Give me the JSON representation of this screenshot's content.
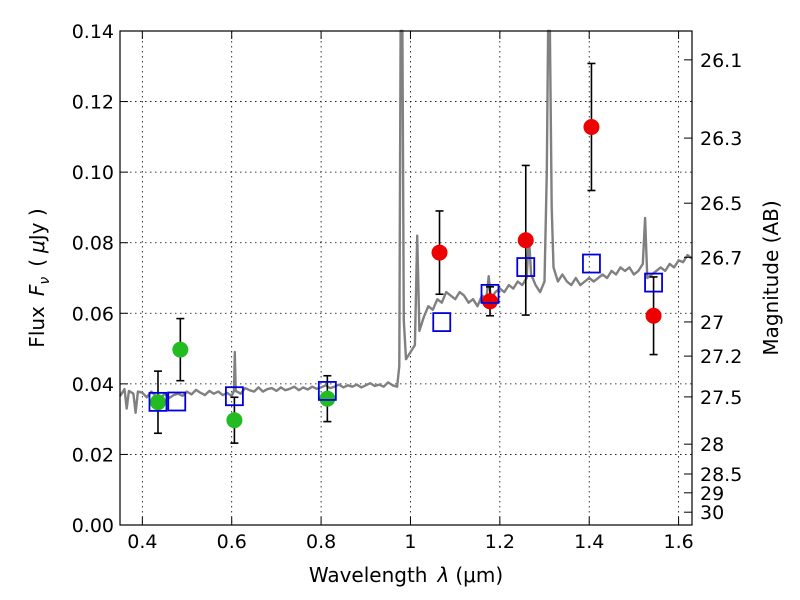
{
  "chart_data": {
    "type": "scatter",
    "xlabel_text": "Wavelength",
    "xlabel_symbol": "λ",
    "xlabel_unit": "(μm)",
    "ylabel_text": "Flux",
    "ylabel_symbol": "F",
    "ylabel_subscript": "ν",
    "ylabel_unit_open": "(",
    "ylabel_unit_mu": "μ",
    "ylabel_unit_rest": "Jy )",
    "y2label": "Magnitude (AB)",
    "xlim": [
      0.35,
      1.63
    ],
    "ylim": [
      0.0,
      0.14
    ],
    "grid": true,
    "x_ticks": [
      {
        "value": 0.4,
        "label": "0.4"
      },
      {
        "value": 0.6,
        "label": "0.6"
      },
      {
        "value": 0.8,
        "label": "0.8"
      },
      {
        "value": 1.0,
        "label": "1"
      },
      {
        "value": 1.2,
        "label": "1.2"
      },
      {
        "value": 1.4,
        "label": "1.4"
      },
      {
        "value": 1.6,
        "label": "1.6"
      }
    ],
    "y_ticks": [
      {
        "value": 0.0,
        "label": "0.00"
      },
      {
        "value": 0.02,
        "label": "0.02"
      },
      {
        "value": 0.04,
        "label": "0.04"
      },
      {
        "value": 0.06,
        "label": "0.06"
      },
      {
        "value": 0.08,
        "label": "0.08"
      },
      {
        "value": 0.1,
        "label": "0.10"
      },
      {
        "value": 0.12,
        "label": "0.12"
      },
      {
        "value": 0.14,
        "label": "0.14"
      }
    ],
    "mag_ticks": [
      {
        "mag": 26.1,
        "label": "26.1"
      },
      {
        "mag": 26.3,
        "label": "26.3"
      },
      {
        "mag": 26.5,
        "label": "26.5"
      },
      {
        "mag": 26.7,
        "label": "26.7"
      },
      {
        "mag": 27.0,
        "label": "27"
      },
      {
        "mag": 27.2,
        "label": "27.2"
      },
      {
        "mag": 27.5,
        "label": "27.5"
      },
      {
        "mag": 28.0,
        "label": "28"
      },
      {
        "mag": 28.5,
        "label": "28.5"
      },
      {
        "mag": 29.0,
        "label": "29"
      },
      {
        "mag": 30.0,
        "label": "30"
      }
    ],
    "spectrum": {
      "name": "model spectrum",
      "color": "#808080",
      "points": [
        [
          0.35,
          0.0365
        ],
        [
          0.36,
          0.0385
        ],
        [
          0.365,
          0.033
        ],
        [
          0.37,
          0.038
        ],
        [
          0.38,
          0.0372
        ],
        [
          0.385,
          0.0318
        ],
        [
          0.39,
          0.0378
        ],
        [
          0.4,
          0.0375
        ],
        [
          0.41,
          0.0362
        ],
        [
          0.42,
          0.0378
        ],
        [
          0.43,
          0.0366
        ],
        [
          0.44,
          0.0358
        ],
        [
          0.45,
          0.0372
        ],
        [
          0.46,
          0.036
        ],
        [
          0.47,
          0.0368
        ],
        [
          0.48,
          0.0372
        ],
        [
          0.49,
          0.0366
        ],
        [
          0.5,
          0.0378
        ],
        [
          0.51,
          0.037
        ],
        [
          0.52,
          0.0383
        ],
        [
          0.53,
          0.0375
        ],
        [
          0.54,
          0.0368
        ],
        [
          0.55,
          0.038
        ],
        [
          0.56,
          0.0372
        ],
        [
          0.57,
          0.0378
        ],
        [
          0.58,
          0.0368
        ],
        [
          0.59,
          0.0374
        ],
        [
          0.6,
          0.0366
        ],
        [
          0.605,
          0.038
        ],
        [
          0.607,
          0.049
        ],
        [
          0.609,
          0.038
        ],
        [
          0.62,
          0.0372
        ],
        [
          0.63,
          0.0388
        ],
        [
          0.64,
          0.0382
        ],
        [
          0.65,
          0.0378
        ],
        [
          0.66,
          0.039
        ],
        [
          0.67,
          0.0378
        ],
        [
          0.68,
          0.0385
        ],
        [
          0.69,
          0.0388
        ],
        [
          0.7,
          0.038
        ],
        [
          0.71,
          0.039
        ],
        [
          0.72,
          0.0382
        ],
        [
          0.73,
          0.0386
        ],
        [
          0.74,
          0.0392
        ],
        [
          0.75,
          0.0382
        ],
        [
          0.76,
          0.039
        ],
        [
          0.77,
          0.0384
        ],
        [
          0.78,
          0.0392
        ],
        [
          0.79,
          0.0386
        ],
        [
          0.8,
          0.039
        ],
        [
          0.81,
          0.0396
        ],
        [
          0.82,
          0.0388
        ],
        [
          0.83,
          0.0392
        ],
        [
          0.84,
          0.0398
        ],
        [
          0.85,
          0.039
        ],
        [
          0.86,
          0.0396
        ],
        [
          0.87,
          0.0392
        ],
        [
          0.88,
          0.0398
        ],
        [
          0.89,
          0.039
        ],
        [
          0.9,
          0.0396
        ],
        [
          0.91,
          0.0402
        ],
        [
          0.92,
          0.0394
        ],
        [
          0.93,
          0.0398
        ],
        [
          0.94,
          0.0392
        ],
        [
          0.95,
          0.0404
        ],
        [
          0.96,
          0.0396
        ],
        [
          0.97,
          0.0392
        ],
        [
          0.975,
          0.045
        ],
        [
          0.978,
          0.14
        ],
        [
          0.982,
          0.14
        ],
        [
          0.985,
          0.058
        ],
        [
          0.99,
          0.047
        ],
        [
          1.0,
          0.049
        ],
        [
          1.01,
          0.051
        ],
        [
          1.015,
          0.082
        ],
        [
          1.02,
          0.055
        ],
        [
          1.03,
          0.059
        ],
        [
          1.04,
          0.062
        ],
        [
          1.05,
          0.061
        ],
        [
          1.06,
          0.064
        ],
        [
          1.07,
          0.063
        ],
        [
          1.08,
          0.066
        ],
        [
          1.09,
          0.065
        ],
        [
          1.1,
          0.064
        ],
        [
          1.11,
          0.066
        ],
        [
          1.12,
          0.065
        ],
        [
          1.13,
          0.063
        ],
        [
          1.14,
          0.064
        ],
        [
          1.15,
          0.062
        ],
        [
          1.16,
          0.065
        ],
        [
          1.17,
          0.064
        ],
        [
          1.175,
          0.0705
        ],
        [
          1.18,
          0.064
        ],
        [
          1.19,
          0.066
        ],
        [
          1.2,
          0.067
        ],
        [
          1.21,
          0.066
        ],
        [
          1.22,
          0.068
        ],
        [
          1.23,
          0.067
        ],
        [
          1.24,
          0.069
        ],
        [
          1.25,
          0.068
        ],
        [
          1.26,
          0.07
        ],
        [
          1.265,
          0.082
        ],
        [
          1.27,
          0.071
        ],
        [
          1.28,
          0.068
        ],
        [
          1.29,
          0.066
        ],
        [
          1.3,
          0.069
        ],
        [
          1.305,
          0.1
        ],
        [
          1.308,
          0.14
        ],
        [
          1.312,
          0.14
        ],
        [
          1.316,
          0.09
        ],
        [
          1.32,
          0.073
        ],
        [
          1.33,
          0.069
        ],
        [
          1.34,
          0.071
        ],
        [
          1.35,
          0.069
        ],
        [
          1.36,
          0.068
        ],
        [
          1.37,
          0.07
        ],
        [
          1.38,
          0.068
        ],
        [
          1.39,
          0.069
        ],
        [
          1.4,
          0.07
        ],
        [
          1.41,
          0.069
        ],
        [
          1.42,
          0.07
        ],
        [
          1.43,
          0.071
        ],
        [
          1.44,
          0.07
        ],
        [
          1.45,
          0.072
        ],
        [
          1.46,
          0.071
        ],
        [
          1.47,
          0.073
        ],
        [
          1.48,
          0.072
        ],
        [
          1.49,
          0.073
        ],
        [
          1.5,
          0.071
        ],
        [
          1.51,
          0.072
        ],
        [
          1.52,
          0.074
        ],
        [
          1.525,
          0.087
        ],
        [
          1.53,
          0.07
        ],
        [
          1.54,
          0.071
        ],
        [
          1.55,
          0.072
        ],
        [
          1.56,
          0.073
        ],
        [
          1.57,
          0.072
        ],
        [
          1.58,
          0.074
        ],
        [
          1.59,
          0.073
        ],
        [
          1.6,
          0.075
        ],
        [
          1.61,
          0.0745
        ],
        [
          1.62,
          0.0765
        ],
        [
          1.63,
          0.0755
        ]
      ]
    },
    "series": [
      {
        "name": "green points",
        "color": "#22bb22",
        "marker": "circle",
        "points": [
          {
            "x": 0.435,
            "y": 0.0348,
            "yerr": 0.0088
          },
          {
            "x": 0.485,
            "y": 0.0497,
            "yerr": 0.0088
          },
          {
            "x": 0.606,
            "y": 0.0297,
            "yerr": 0.0065
          },
          {
            "x": 0.814,
            "y": 0.0358,
            "yerr": 0.0065
          }
        ]
      },
      {
        "name": "red points",
        "color": "#ee0000",
        "marker": "circle",
        "points": [
          {
            "x": 1.065,
            "y": 0.0772,
            "yerr": 0.0118
          },
          {
            "x": 1.178,
            "y": 0.0634,
            "yerr": 0.0041
          },
          {
            "x": 1.258,
            "y": 0.0807,
            "yerr": 0.0212
          },
          {
            "x": 1.405,
            "y": 0.1128,
            "yerr": 0.018
          },
          {
            "x": 1.544,
            "y": 0.0593,
            "yerr": 0.011
          }
        ]
      },
      {
        "name": "blue squares",
        "color": "#0000dd",
        "marker": "square",
        "points": [
          {
            "x": 0.435,
            "y": 0.0349
          },
          {
            "x": 0.477,
            "y": 0.035
          },
          {
            "x": 0.606,
            "y": 0.0365
          },
          {
            "x": 0.814,
            "y": 0.038
          },
          {
            "x": 1.07,
            "y": 0.0575
          },
          {
            "x": 1.178,
            "y": 0.0655
          },
          {
            "x": 1.258,
            "y": 0.0731
          },
          {
            "x": 1.405,
            "y": 0.0741
          },
          {
            "x": 1.544,
            "y": 0.0687
          }
        ]
      }
    ]
  }
}
